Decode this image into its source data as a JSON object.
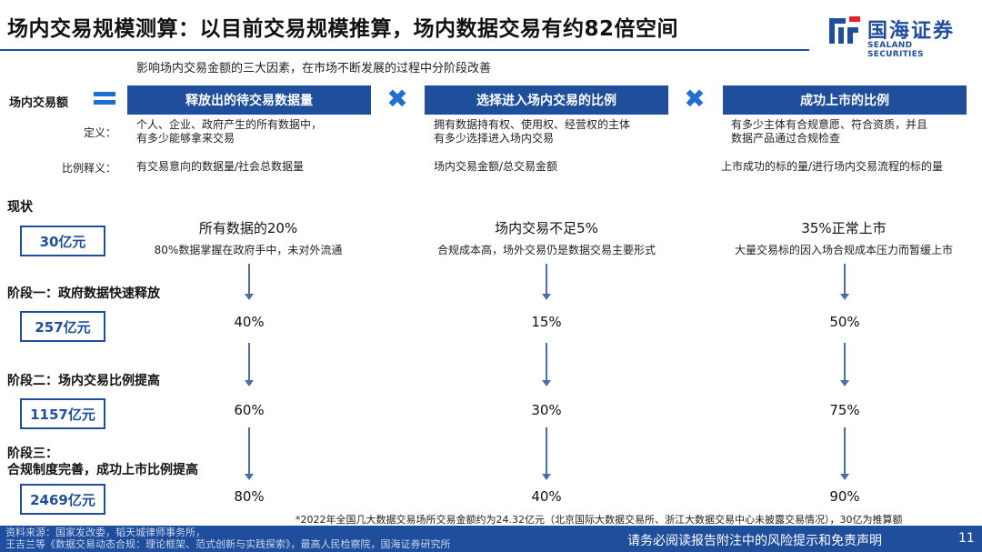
{
  "header": {
    "title": "场内交易规模测算：以目前交易规模推算，场内数据交易有约82倍空间",
    "logo_cn": "国海证券",
    "logo_en": "SEALAND SECURITIES"
  },
  "subtitle": "影响场内交易金额的三大因素，在市场不断发展的过程中分阶段改善",
  "equation": {
    "left_label": "场内交易额",
    "factors": [
      {
        "header": "释放出的待交易数据量",
        "definition": [
          "个人、企业、政府产生的所有数据中，",
          "有多少能够拿来交易"
        ],
        "ratio": "有交易意向的数据量/社会总数据量",
        "status_title": "所有数据的20%",
        "status_desc": "80%数据掌握在政府手中，未对外流通",
        "stages": [
          "40%",
          "60%",
          "80%"
        ]
      },
      {
        "header": "选择进入场内交易的比例",
        "definition": [
          "拥有数据持有权、使用权、经营权的主体",
          "有多少选择进入场内交易"
        ],
        "ratio": "场内交易金额/总交易金额",
        "status_title": "场内交易不足5%",
        "status_desc": "合规成本高，场外交易仍是数据交易主要形式",
        "stages": [
          "15%",
          "30%",
          "40%"
        ]
      },
      {
        "header": "成功上市的比例",
        "definition": [
          "有多少主体有合规意愿、符合资质，并且",
          "数据产品通过合规检查"
        ],
        "ratio": "上市成功的标的量/进行场内交易流程的标的量",
        "status_title": "35%正常上市",
        "status_desc": "大量交易标的因入场合规成本压力而暂缓上市",
        "stages": [
          "50%",
          "75%",
          "90%"
        ]
      }
    ]
  },
  "row_labels": {
    "definition": "定义：",
    "ratio": "比例释义："
  },
  "stages": [
    {
      "label": "现状",
      "value": "30亿元"
    },
    {
      "label": "阶段一：政府数据快速释放",
      "value": "257亿元"
    },
    {
      "label": "阶段二：场内交易比例提高",
      "value": "1157亿元"
    },
    {
      "label_line1": "阶段三：",
      "label_line2": "合规制度完善，成功上市比例提高",
      "value": "2469亿元"
    }
  ],
  "footnote": "*2022年全国几大数据交易场所交易金额约为24.32亿元（北京国际大数据交易所、浙江大数据交易中心未披露交易情况），30亿为推算额",
  "footer": {
    "source_line1": "资料来源：国家发改委，韬天城律师事务所，",
    "source_line2": "王吉兰等《数据交易动态合规：理论框架、范式创新与实践探索》，最高人民检察院，国海证券研究所",
    "disclaimer": "请务必阅读报告附注中的风险提示和免责声明",
    "page": "11"
  },
  "colors": {
    "brand_blue": "#1f4e9c",
    "accent_blue": "#1f6ed4"
  }
}
